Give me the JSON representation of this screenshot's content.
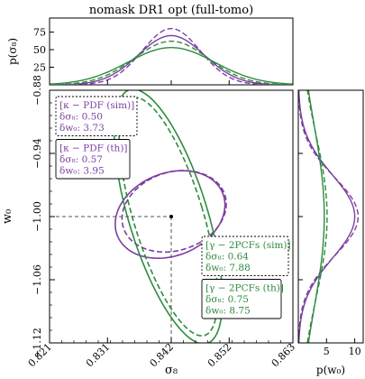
{
  "chart_data": {
    "type": "contour",
    "title": "nomask DR1 opt (full-tomo)",
    "main": {
      "xlabel": "σ₈",
      "ylabel": "w₀",
      "xlim": [
        0.821,
        0.863
      ],
      "ylim": [
        -1.12,
        -0.88
      ],
      "xticks": [
        "0.821",
        "0.831",
        "0.842",
        "0.852",
        "0.863"
      ],
      "yticks": [
        "−0.88",
        "−0.94",
        "−1.00",
        "−1.06",
        "−1.12"
      ],
      "fiducial": {
        "sigma8": 0.842,
        "w0": -1.0
      },
      "series": [
        {
          "id": "kappa-sim",
          "probe": "κ − PDF (sim)",
          "style": "dashed",
          "color": "#7b3fa0",
          "center": [
            0.8425,
            -0.995
          ],
          "semi_axes": [
            0.0092,
            0.0372
          ],
          "angle_deg": 18,
          "delta_sigma8": "0.50",
          "delta_w0": "3.73"
        },
        {
          "id": "kappa-th",
          "probe": "κ − PDF (th)",
          "style": "solid",
          "color": "#7b3fa0",
          "center": [
            0.8418,
            -0.998
          ],
          "semi_axes": [
            0.0098,
            0.0392
          ],
          "angle_deg": 22,
          "delta_sigma8": "0.57",
          "delta_w0": "3.95"
        },
        {
          "id": "gamma-sim",
          "probe": "γ − 2PCFs (sim)",
          "style": "dashed",
          "color": "#2e8b3e",
          "center": [
            0.8415,
            -1.0
          ],
          "semi_axes": [
            0.006,
            0.118
          ],
          "angle_deg": 17,
          "delta_sigma8": "0.64",
          "delta_w0": "7.88"
        },
        {
          "id": "gamma-th",
          "probe": "γ − 2PCFs (th)",
          "style": "solid",
          "color": "#2e8b3e",
          "center": [
            0.8415,
            -1.0
          ],
          "semi_axes": [
            0.0068,
            0.126
          ],
          "angle_deg": 17,
          "delta_sigma8": "0.75",
          "delta_w0": "8.75"
        }
      ],
      "legend": [
        {
          "lines": [
            "[κ − PDF (sim)]",
            "δσ₈: 0.50",
            "δw₀: 3.73"
          ],
          "color": "#7b3fa0",
          "border": "dashed",
          "position": "upper-left"
        },
        {
          "lines": [
            "[κ − PDF (th)]",
            "δσ₈: 0.57",
            "δw₀: 3.95"
          ],
          "color": "#7b3fa0",
          "border": "solid",
          "position": "upper-left"
        },
        {
          "lines": [
            "[γ − 2PCFs (sim)]",
            "δσ₈: 0.64",
            "δw₀: 7.88"
          ],
          "color": "#2e8b3e",
          "border": "dashed",
          "position": "lower-right"
        },
        {
          "lines": [
            "[γ − 2PCFs (th)]",
            "δσ₈: 0.75",
            "δw₀: 8.75"
          ],
          "color": "#2e8b3e",
          "border": "solid",
          "position": "lower-right"
        }
      ]
    },
    "top": {
      "ylabel": "p(σ₈)",
      "yticks": [
        25,
        50,
        75
      ],
      "ylim": [
        0,
        95
      ],
      "series": [
        {
          "id": "kappa-sim",
          "mu": 0.842,
          "sigma": 0.005,
          "peak": 80,
          "style": "dashed",
          "color": "#7b3fa0"
        },
        {
          "id": "kappa-th",
          "mu": 0.842,
          "sigma": 0.0057,
          "peak": 70,
          "style": "solid",
          "color": "#7b3fa0"
        },
        {
          "id": "gamma-sim",
          "mu": 0.842,
          "sigma": 0.0064,
          "peak": 62,
          "style": "dashed",
          "color": "#2e8b3e"
        },
        {
          "id": "gamma-th",
          "mu": 0.842,
          "sigma": 0.0075,
          "peak": 53,
          "style": "solid",
          "color": "#2e8b3e"
        }
      ]
    },
    "right": {
      "xlabel": "p(w₀)",
      "xticks": [
        "5",
        "10"
      ],
      "xlim": [
        0,
        11.5
      ],
      "series": [
        {
          "id": "kappa-sim",
          "mu": -1.0,
          "sigma": 0.0373,
          "peak": 10.6,
          "style": "dashed",
          "color": "#7b3fa0"
        },
        {
          "id": "kappa-th",
          "mu": -1.0,
          "sigma": 0.0395,
          "peak": 10.0,
          "style": "solid",
          "color": "#7b3fa0"
        },
        {
          "id": "gamma-sim",
          "mu": -1.0,
          "sigma": 0.0788,
          "peak": 5.1,
          "style": "dashed",
          "color": "#2e8b3e"
        },
        {
          "id": "gamma-th",
          "mu": -1.0,
          "sigma": 0.0875,
          "peak": 4.6,
          "style": "solid",
          "color": "#2e8b3e"
        }
      ]
    }
  }
}
